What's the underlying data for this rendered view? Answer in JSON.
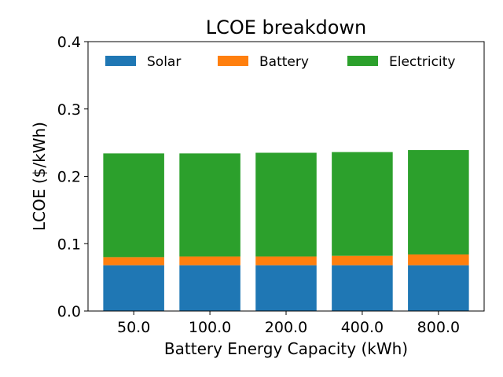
{
  "chart_data": {
    "type": "bar",
    "stacked": true,
    "title": "LCOE breakdown",
    "xlabel": "Battery Energy Capacity (kWh)",
    "ylabel": "LCOE ($/kWh)",
    "categories": [
      "50.0",
      "100.0",
      "200.0",
      "400.0",
      "800.0"
    ],
    "ylim": [
      0,
      0.4
    ],
    "yticks": [
      "0.0",
      "0.1",
      "0.2",
      "0.3",
      "0.4"
    ],
    "grid": false,
    "legend_position": "top",
    "series": [
      {
        "name": "Solar",
        "color": "#1f77b4",
        "values": [
          0.068,
          0.068,
          0.068,
          0.068,
          0.068
        ]
      },
      {
        "name": "Battery",
        "color": "#ff7f0e",
        "values": [
          0.012,
          0.013,
          0.013,
          0.014,
          0.016
        ]
      },
      {
        "name": "Electricity",
        "color": "#2ca02c",
        "values": [
          0.154,
          0.153,
          0.154,
          0.154,
          0.155
        ]
      }
    ]
  }
}
